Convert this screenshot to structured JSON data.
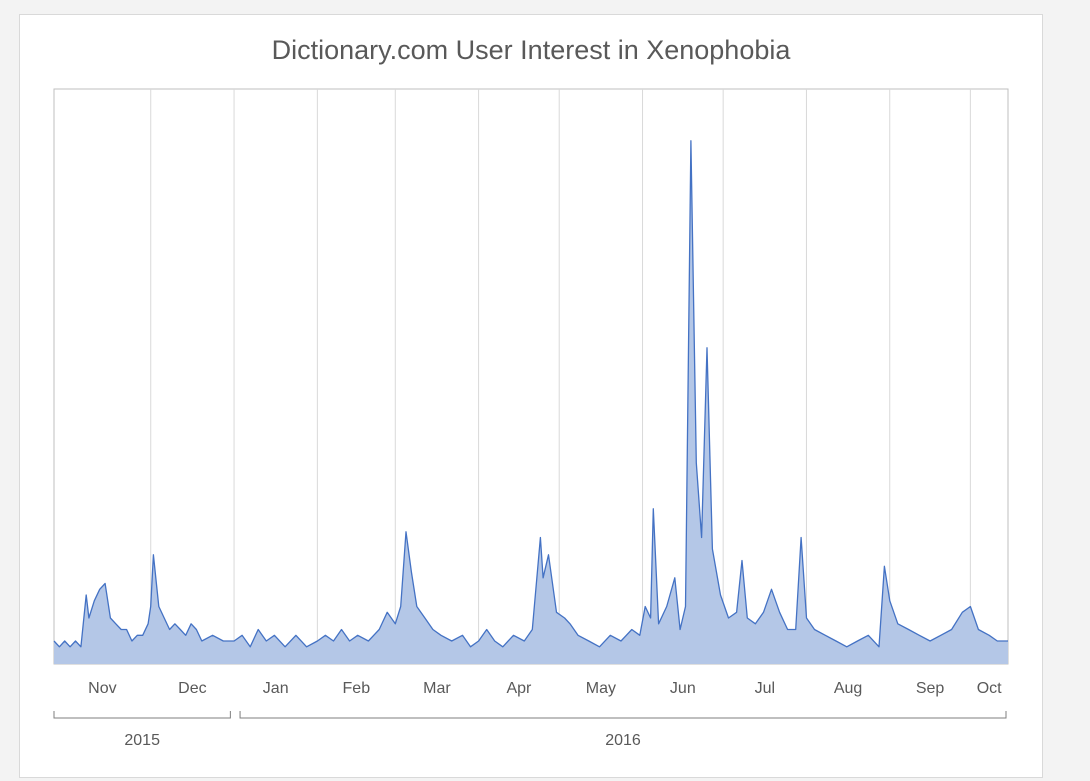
{
  "chart_data": {
    "type": "area",
    "title": "Dictionary.com User Interest in Xenophobia",
    "xlabel": "",
    "ylabel": "",
    "x_range": [
      "2015-10-26",
      "2016-10-15"
    ],
    "ylim": [
      0,
      100
    ],
    "grid": {
      "vertical": true,
      "horizontal": false
    },
    "colors": {
      "fill": "#b4c7e7",
      "line": "#4472c4",
      "grid": "#d9d9d9",
      "axis": "#bfbfbf",
      "text": "#595959"
    },
    "month_ticks": [
      "Nov",
      "Dec",
      "Jan",
      "Feb",
      "Mar",
      "Apr",
      "May",
      "Jun",
      "Jul",
      "Aug",
      "Sep",
      "Oct"
    ],
    "years": [
      {
        "label": "2015",
        "from": "2015-10-26",
        "to": "2015-12-31"
      },
      {
        "label": "2016",
        "from": "2016-01-01",
        "to": "2016-10-15"
      }
    ],
    "series": [
      {
        "points": [
          [
            "2015-10-26",
            4
          ],
          [
            "2015-10-28",
            3
          ],
          [
            "2015-10-30",
            4
          ],
          [
            "2015-11-01",
            3
          ],
          [
            "2015-11-03",
            4
          ],
          [
            "2015-11-05",
            3
          ],
          [
            "2015-11-07",
            12
          ],
          [
            "2015-11-08",
            8
          ],
          [
            "2015-11-10",
            11
          ],
          [
            "2015-11-12",
            13
          ],
          [
            "2015-11-14",
            14
          ],
          [
            "2015-11-16",
            8
          ],
          [
            "2015-11-18",
            7
          ],
          [
            "2015-11-20",
            6
          ],
          [
            "2015-11-22",
            6
          ],
          [
            "2015-11-24",
            4
          ],
          [
            "2015-11-26",
            5
          ],
          [
            "2015-11-28",
            5
          ],
          [
            "2015-11-30",
            7
          ],
          [
            "2015-12-01",
            10
          ],
          [
            "2015-12-02",
            19
          ],
          [
            "2015-12-04",
            10
          ],
          [
            "2015-12-06",
            8
          ],
          [
            "2015-12-08",
            6
          ],
          [
            "2015-12-10",
            7
          ],
          [
            "2015-12-12",
            6
          ],
          [
            "2015-12-14",
            5
          ],
          [
            "2015-12-16",
            7
          ],
          [
            "2015-12-18",
            6
          ],
          [
            "2015-12-20",
            4
          ],
          [
            "2015-12-24",
            5
          ],
          [
            "2015-12-28",
            4
          ],
          [
            "2016-01-01",
            4
          ],
          [
            "2016-01-04",
            5
          ],
          [
            "2016-01-07",
            3
          ],
          [
            "2016-01-10",
            6
          ],
          [
            "2016-01-13",
            4
          ],
          [
            "2016-01-16",
            5
          ],
          [
            "2016-01-20",
            3
          ],
          [
            "2016-01-24",
            5
          ],
          [
            "2016-01-28",
            3
          ],
          [
            "2016-02-01",
            4
          ],
          [
            "2016-02-04",
            5
          ],
          [
            "2016-02-07",
            4
          ],
          [
            "2016-02-10",
            6
          ],
          [
            "2016-02-13",
            4
          ],
          [
            "2016-02-16",
            5
          ],
          [
            "2016-02-20",
            4
          ],
          [
            "2016-02-24",
            6
          ],
          [
            "2016-02-27",
            9
          ],
          [
            "2016-03-01",
            7
          ],
          [
            "2016-03-03",
            10
          ],
          [
            "2016-03-05",
            23
          ],
          [
            "2016-03-07",
            16
          ],
          [
            "2016-03-09",
            10
          ],
          [
            "2016-03-12",
            8
          ],
          [
            "2016-03-15",
            6
          ],
          [
            "2016-03-18",
            5
          ],
          [
            "2016-03-22",
            4
          ],
          [
            "2016-03-26",
            5
          ],
          [
            "2016-03-29",
            3
          ],
          [
            "2016-04-01",
            4
          ],
          [
            "2016-04-04",
            6
          ],
          [
            "2016-04-07",
            4
          ],
          [
            "2016-04-10",
            3
          ],
          [
            "2016-04-14",
            5
          ],
          [
            "2016-04-18",
            4
          ],
          [
            "2016-04-21",
            6
          ],
          [
            "2016-04-24",
            22
          ],
          [
            "2016-04-25",
            15
          ],
          [
            "2016-04-27",
            19
          ],
          [
            "2016-04-30",
            9
          ],
          [
            "2016-05-03",
            8
          ],
          [
            "2016-05-05",
            7
          ],
          [
            "2016-05-08",
            5
          ],
          [
            "2016-05-12",
            4
          ],
          [
            "2016-05-16",
            3
          ],
          [
            "2016-05-20",
            5
          ],
          [
            "2016-05-24",
            4
          ],
          [
            "2016-05-28",
            6
          ],
          [
            "2016-05-31",
            5
          ],
          [
            "2016-06-02",
            10
          ],
          [
            "2016-06-04",
            8
          ],
          [
            "2016-06-05",
            27
          ],
          [
            "2016-06-07",
            7
          ],
          [
            "2016-06-10",
            10
          ],
          [
            "2016-06-13",
            15
          ],
          [
            "2016-06-15",
            6
          ],
          [
            "2016-06-17",
            10
          ],
          [
            "2016-06-19",
            91
          ],
          [
            "2016-06-21",
            35
          ],
          [
            "2016-06-23",
            22
          ],
          [
            "2016-06-25",
            55
          ],
          [
            "2016-06-27",
            20
          ],
          [
            "2016-06-30",
            12
          ],
          [
            "2016-07-03",
            8
          ],
          [
            "2016-07-06",
            9
          ],
          [
            "2016-07-08",
            18
          ],
          [
            "2016-07-10",
            8
          ],
          [
            "2016-07-13",
            7
          ],
          [
            "2016-07-16",
            9
          ],
          [
            "2016-07-19",
            13
          ],
          [
            "2016-07-22",
            9
          ],
          [
            "2016-07-25",
            6
          ],
          [
            "2016-07-28",
            6
          ],
          [
            "2016-07-30",
            22
          ],
          [
            "2016-08-01",
            8
          ],
          [
            "2016-08-04",
            6
          ],
          [
            "2016-08-08",
            5
          ],
          [
            "2016-08-12",
            4
          ],
          [
            "2016-08-16",
            3
          ],
          [
            "2016-08-20",
            4
          ],
          [
            "2016-08-24",
            5
          ],
          [
            "2016-08-28",
            3
          ],
          [
            "2016-08-30",
            17
          ],
          [
            "2016-09-01",
            11
          ],
          [
            "2016-09-04",
            7
          ],
          [
            "2016-09-08",
            6
          ],
          [
            "2016-09-12",
            5
          ],
          [
            "2016-09-16",
            4
          ],
          [
            "2016-09-20",
            5
          ],
          [
            "2016-09-24",
            6
          ],
          [
            "2016-09-28",
            9
          ],
          [
            "2016-10-01",
            10
          ],
          [
            "2016-10-04",
            6
          ],
          [
            "2016-10-08",
            5
          ],
          [
            "2016-10-11",
            4
          ],
          [
            "2016-10-15",
            4
          ]
        ]
      }
    ]
  }
}
